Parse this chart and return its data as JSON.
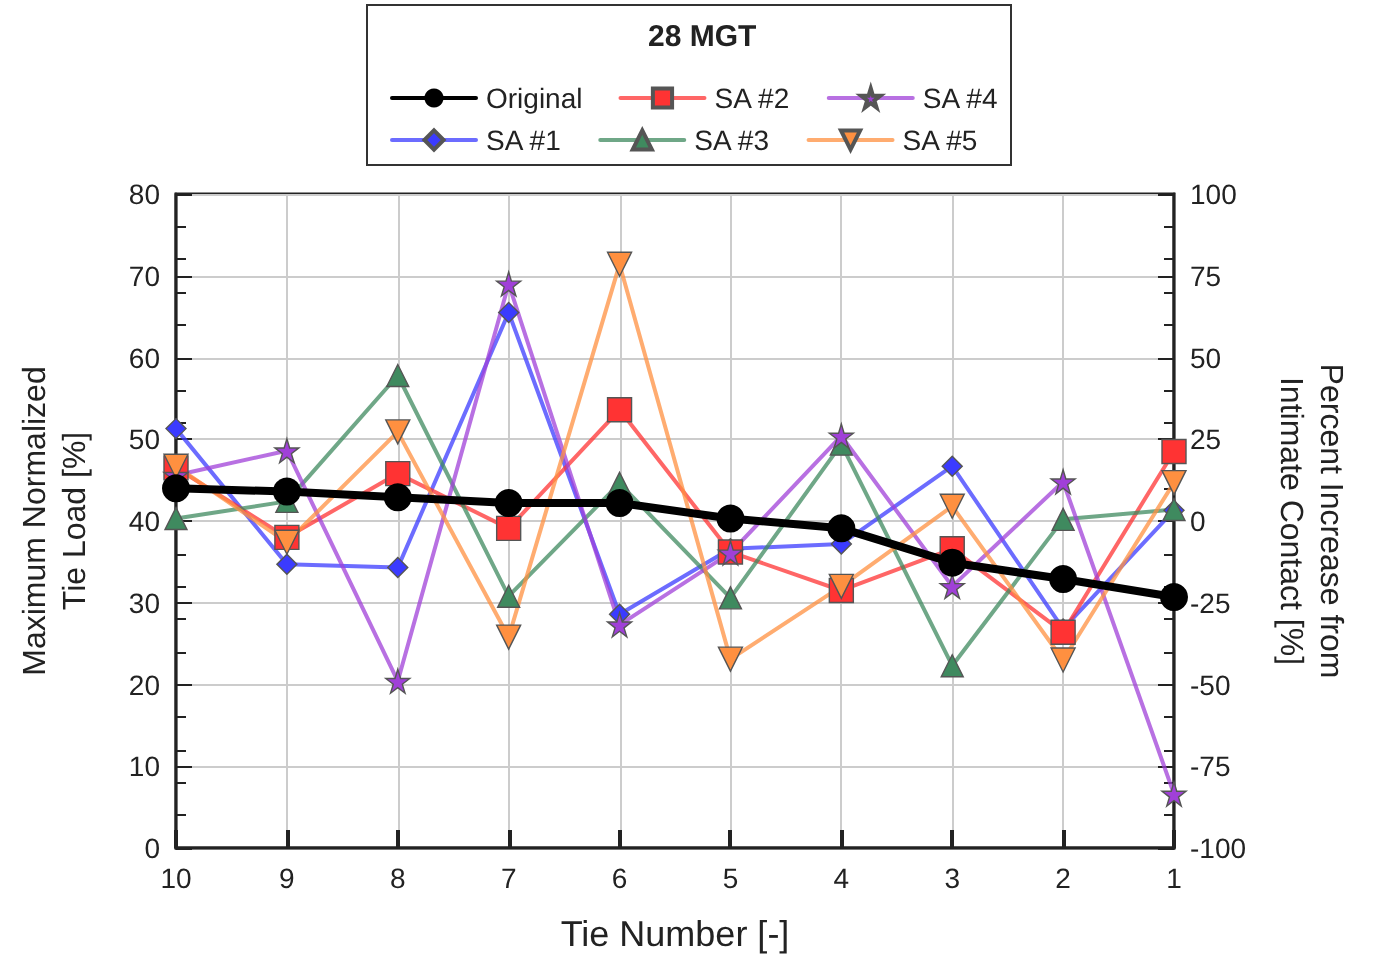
{
  "chart_data": {
    "type": "line",
    "legend_title": "28 MGT",
    "xlabel": "Tie Number [-]",
    "ylabel": "Maximum Normalized\nTie Load [%]",
    "y2label": "Percent Increase from\nIntimate Contact [%]",
    "categories": [
      "10",
      "9",
      "8",
      "7",
      "6",
      "5",
      "4",
      "3",
      "2",
      "1"
    ],
    "series": [
      {
        "name": "Original",
        "color": "#000000",
        "marker": "circle",
        "values": [
          44.0,
          43.6,
          42.9,
          42.2,
          42.2,
          40.3,
          39.1,
          34.9,
          32.9,
          30.7
        ]
      },
      {
        "name": "SA #1",
        "color": "#3b3bff",
        "marker": "diamond",
        "values": [
          51.3,
          34.7,
          34.3,
          65.5,
          28.6,
          36.6,
          37.2,
          46.7,
          26.8,
          41.3
        ]
      },
      {
        "name": "SA #2",
        "color": "#ff3333",
        "marker": "square",
        "values": [
          46.5,
          38.0,
          45.8,
          39.1,
          53.6,
          36.2,
          31.5,
          36.6,
          26.4,
          48.5
        ]
      },
      {
        "name": "SA #3",
        "color": "#3f8a5f",
        "marker": "triangle",
        "values": [
          40.3,
          42.4,
          57.8,
          30.8,
          44.6,
          30.6,
          49.4,
          22.3,
          40.2,
          41.4
        ]
      },
      {
        "name": "SA #4",
        "color": "#a040d8",
        "marker": "star",
        "values": [
          45.6,
          48.6,
          20.4,
          69.0,
          27.3,
          36.1,
          50.4,
          32.0,
          44.8,
          6.6
        ]
      },
      {
        "name": "SA #5",
        "color": "#ff9040",
        "marker": "triangle-down",
        "values": [
          46.7,
          37.4,
          50.9,
          25.8,
          71.4,
          23.1,
          32.0,
          41.8,
          23.0,
          44.7
        ]
      }
    ],
    "ylim": [
      0,
      80
    ],
    "yticks": [
      0,
      10,
      20,
      30,
      40,
      50,
      60,
      70,
      80
    ],
    "y2lim": [
      -100,
      100
    ],
    "y2ticks": [
      -100,
      -75,
      -50,
      -25,
      0,
      25,
      50,
      75,
      100
    ],
    "grid": true,
    "legend": "top",
    "line_style": "solid"
  }
}
